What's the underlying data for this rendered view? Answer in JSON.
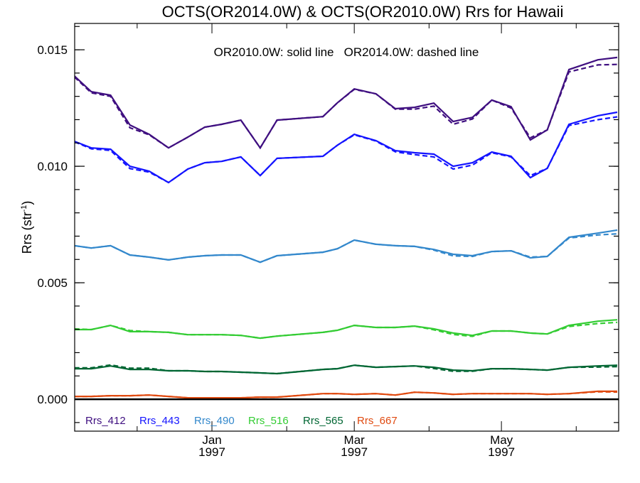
{
  "chart_data": {
    "type": "line",
    "title": "OCTS(OR2014.0W) & OCTS(OR2010.0W)  Rrs for Hawaii",
    "annotation": "OR2010.0W: solid line   OR2014.0W: dashed line",
    "ylabel": "Rrs (str",
    "ylabel_sup": "-1",
    "ylabel_close": ")",
    "xlabel": "",
    "x_units": "days since 1996-11-01",
    "xlim": [
      4.1,
      229.6
    ],
    "ylim": [
      -0.00137,
      0.01613
    ],
    "y_ticks": [
      {
        "value": 0.0,
        "label": "0.000"
      },
      {
        "value": 0.005,
        "label": "0.005"
      },
      {
        "value": 0.01,
        "label": "0.010"
      },
      {
        "value": 0.015,
        "label": "0.015"
      }
    ],
    "y_minor_step": 0.001,
    "x_ticks": [
      {
        "value": 61,
        "label": "Jan",
        "label2": "1997"
      },
      {
        "value": 120,
        "label": "Mar",
        "label2": "1997"
      },
      {
        "value": 181,
        "label": "May",
        "label2": "1997"
      }
    ],
    "x_minor_ticks": [
      30,
      92,
      151,
      212
    ],
    "x": [
      4,
      11,
      19,
      27,
      35,
      43,
      51,
      58,
      65,
      73,
      81,
      88,
      107,
      113,
      120,
      129,
      137,
      145,
      153,
      161,
      169,
      177,
      185,
      193,
      200,
      209,
      221,
      229
    ],
    "series": [
      {
        "name": "Rrs_412",
        "color": "#3f0f80",
        "solid": [
          0.01387,
          0.0132,
          0.01305,
          0.01177,
          0.01137,
          0.01079,
          0.01125,
          0.01168,
          0.0118,
          0.01198,
          0.01079,
          0.01198,
          0.01213,
          0.01272,
          0.01332,
          0.01311,
          0.01247,
          0.01253,
          0.01271,
          0.01192,
          0.0121,
          0.01284,
          0.01256,
          0.01113,
          0.01156,
          0.01415,
          0.01457,
          0.01467
        ],
        "dashed": [
          0.01383,
          0.01315,
          0.013,
          0.01165,
          0.01135,
          0.01079,
          0.01125,
          0.01168,
          0.0118,
          0.01198,
          0.01079,
          0.01198,
          0.01213,
          0.01272,
          0.0133,
          0.01311,
          0.01245,
          0.01245,
          0.01258,
          0.0118,
          0.01203,
          0.01284,
          0.0125,
          0.01122,
          0.01156,
          0.01405,
          0.01435,
          0.01437
        ]
      },
      {
        "name": "Rrs_443",
        "color": "#1414ff",
        "solid": [
          0.01107,
          0.01079,
          0.01073,
          0.01,
          0.00979,
          0.0093,
          0.00988,
          0.01015,
          0.01021,
          0.0104,
          0.0096,
          0.01034,
          0.01043,
          0.0109,
          0.01137,
          0.0111,
          0.01067,
          0.01058,
          0.01052,
          0.01,
          0.01015,
          0.01061,
          0.01043,
          0.00951,
          0.00991,
          0.0118,
          0.01217,
          0.01232
        ],
        "dashed": [
          0.01105,
          0.01075,
          0.01068,
          0.0099,
          0.00975,
          0.0093,
          0.00988,
          0.01015,
          0.01021,
          0.0104,
          0.0096,
          0.01034,
          0.01043,
          0.0109,
          0.01135,
          0.01108,
          0.01062,
          0.0105,
          0.0104,
          0.00988,
          0.01005,
          0.01058,
          0.0104,
          0.0096,
          0.00991,
          0.01175,
          0.012,
          0.01212
        ]
      },
      {
        "name": "Rrs_490",
        "color": "#3388cc",
        "solid": [
          0.00659,
          0.00649,
          0.00659,
          0.00619,
          0.0061,
          0.00598,
          0.0061,
          0.00616,
          0.00619,
          0.00619,
          0.00588,
          0.00616,
          0.00631,
          0.00646,
          0.00683,
          0.00665,
          0.00659,
          0.00656,
          0.00643,
          0.00622,
          0.00616,
          0.00634,
          0.00637,
          0.00607,
          0.00613,
          0.00695,
          0.00713,
          0.00726
        ],
        "dashed": [
          0.00659,
          0.00649,
          0.00659,
          0.00619,
          0.0061,
          0.00598,
          0.0061,
          0.00616,
          0.00619,
          0.00619,
          0.00588,
          0.00616,
          0.00631,
          0.00646,
          0.00683,
          0.00665,
          0.00659,
          0.00656,
          0.0064,
          0.00615,
          0.00613,
          0.00634,
          0.00637,
          0.0061,
          0.00613,
          0.00692,
          0.00705,
          0.0071
        ]
      },
      {
        "name": "Rrs_516",
        "color": "#33cc33",
        "solid": [
          0.00299,
          0.00299,
          0.00317,
          0.0029,
          0.0029,
          0.00287,
          0.00277,
          0.00277,
          0.00277,
          0.00274,
          0.00262,
          0.00271,
          0.00287,
          0.00296,
          0.00317,
          0.00308,
          0.00308,
          0.00314,
          0.00302,
          0.00284,
          0.00274,
          0.00293,
          0.00293,
          0.00284,
          0.0028,
          0.00317,
          0.00335,
          0.00341
        ],
        "dashed": [
          0.00302,
          0.00299,
          0.00317,
          0.00295,
          0.0029,
          0.00287,
          0.00277,
          0.00277,
          0.00277,
          0.00274,
          0.00262,
          0.00271,
          0.00287,
          0.00296,
          0.00317,
          0.00308,
          0.00308,
          0.00314,
          0.00298,
          0.00278,
          0.0027,
          0.00293,
          0.00293,
          0.00284,
          0.0028,
          0.00312,
          0.00325,
          0.0033
        ]
      },
      {
        "name": "Rrs_565",
        "color": "#006633",
        "solid": [
          0.00131,
          0.00131,
          0.00143,
          0.00128,
          0.00128,
          0.00122,
          0.00122,
          0.00119,
          0.00119,
          0.00116,
          0.00113,
          0.0011,
          0.00128,
          0.00131,
          0.00146,
          0.00137,
          0.0014,
          0.00143,
          0.00137,
          0.00125,
          0.00122,
          0.00131,
          0.00131,
          0.00128,
          0.00125,
          0.00137,
          0.00143,
          0.00146
        ],
        "dashed": [
          0.00135,
          0.00135,
          0.00147,
          0.00133,
          0.00133,
          0.00122,
          0.00122,
          0.00119,
          0.00119,
          0.00116,
          0.00113,
          0.0011,
          0.00128,
          0.00131,
          0.00146,
          0.00137,
          0.0014,
          0.00143,
          0.00132,
          0.0012,
          0.0012,
          0.00131,
          0.00131,
          0.00128,
          0.00125,
          0.00137,
          0.00138,
          0.0014
        ]
      },
      {
        "name": "Rrs_667",
        "color": "#e04a10",
        "solid": [
          0.00012,
          0.00012,
          0.00015,
          0.00015,
          0.00018,
          0.00012,
          6e-05,
          6e-05,
          6e-05,
          6e-05,
          9e-05,
          9e-05,
          0.00024,
          0.00024,
          0.00021,
          0.00024,
          0.00018,
          0.0003,
          0.00027,
          0.00021,
          0.00024,
          0.00024,
          0.00024,
          0.00024,
          0.00021,
          0.00024,
          0.00034,
          0.00034
        ],
        "dashed": [
          0.00012,
          0.00012,
          0.00015,
          0.00015,
          0.00018,
          0.00012,
          6e-05,
          6e-05,
          6e-05,
          6e-05,
          9e-05,
          9e-05,
          0.00024,
          0.00024,
          0.00021,
          0.00024,
          0.00018,
          0.0003,
          0.00027,
          0.00021,
          0.00024,
          0.00024,
          0.00024,
          0.00024,
          0.00021,
          0.00024,
          0.00032,
          0.00031
        ]
      }
    ],
    "legend_placement": "bottom-left inside plot",
    "grid": false
  }
}
